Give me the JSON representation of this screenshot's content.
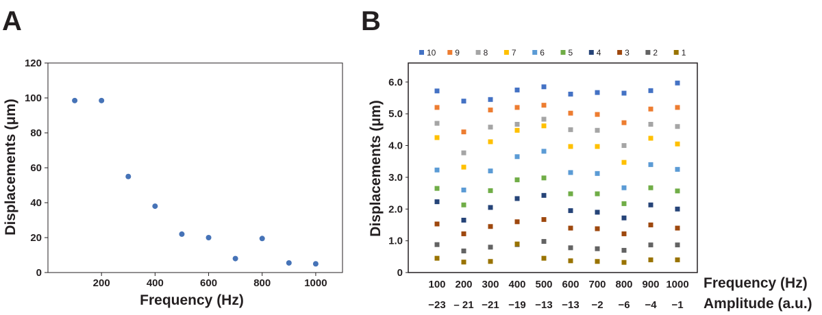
{
  "panels": {
    "a_label": "A",
    "b_label": "B"
  },
  "colors": {
    "axis": "#231f20",
    "series_a": "#4673b7",
    "series": [
      "#4472c4",
      "#ed7d31",
      "#a5a5a5",
      "#ffc000",
      "#5b9bd5",
      "#70ad47",
      "#264478",
      "#9e480e",
      "#636363",
      "#997300"
    ]
  },
  "chart_data": [
    {
      "panel": "A",
      "type": "scatter",
      "title": "",
      "xlabel": "Frequency (Hz)",
      "ylabel": "Displacements (μm)",
      "xlim": [
        0,
        1100
      ],
      "ylim": [
        0,
        120
      ],
      "xticks": [
        200,
        400,
        600,
        800,
        1000
      ],
      "yticks": [
        0,
        20,
        40,
        60,
        80,
        100,
        120
      ],
      "x": [
        100,
        200,
        300,
        400,
        500,
        600,
        700,
        800,
        900,
        1000
      ],
      "y": [
        98.5,
        98.5,
        55,
        38,
        22,
        20,
        8,
        19.5,
        5.5,
        5
      ],
      "grid": false
    },
    {
      "panel": "B",
      "type": "scatter",
      "title": "",
      "xlabel": "Frequency (Hz)",
      "xlabel2": "Amplitude (a.u.)",
      "ylabel": "Displacements (μm)",
      "ylim": [
        0,
        6.6
      ],
      "yticks": [
        "0",
        "1.0",
        "2.0",
        "3.0",
        "4.0",
        "5.0",
        "6.0"
      ],
      "categories": [
        "100",
        "200",
        "300",
        "400",
        "500",
        "600",
        "700",
        "800",
        "900",
        "1000"
      ],
      "categories2": [
        "−23",
        "– 21",
        "−21",
        "−19",
        "−13",
        "−13",
        "−2",
        "−6",
        "−4",
        "−1"
      ],
      "legend_position": "top",
      "grid": false,
      "series": [
        {
          "name": "10",
          "values": [
            5.72,
            5.4,
            5.45,
            5.75,
            5.85,
            5.62,
            5.67,
            5.65,
            5.73,
            5.97
          ]
        },
        {
          "name": "9",
          "values": [
            5.2,
            4.43,
            5.12,
            5.2,
            5.27,
            5.02,
            4.98,
            4.72,
            5.15,
            5.2
          ]
        },
        {
          "name": "8",
          "values": [
            4.7,
            3.77,
            4.58,
            4.67,
            4.83,
            4.5,
            4.48,
            4.0,
            4.67,
            4.6
          ]
        },
        {
          "name": "7",
          "values": [
            4.25,
            3.32,
            4.12,
            4.48,
            4.62,
            3.97,
            3.97,
            3.47,
            4.23,
            4.05
          ]
        },
        {
          "name": "6",
          "values": [
            3.23,
            2.6,
            3.2,
            3.65,
            3.82,
            3.15,
            3.12,
            2.67,
            3.4,
            3.25
          ]
        },
        {
          "name": "5",
          "values": [
            2.65,
            2.13,
            2.58,
            2.92,
            2.98,
            2.48,
            2.48,
            2.17,
            2.67,
            2.57
          ]
        },
        {
          "name": "4",
          "values": [
            2.23,
            1.65,
            2.05,
            2.33,
            2.43,
            1.95,
            1.9,
            1.72,
            2.13,
            2.0
          ]
        },
        {
          "name": "3",
          "values": [
            1.53,
            1.22,
            1.45,
            1.6,
            1.67,
            1.4,
            1.38,
            1.22,
            1.5,
            1.4
          ]
        },
        {
          "name": "2",
          "values": [
            0.88,
            0.68,
            0.8,
            0.88,
            0.98,
            0.78,
            0.75,
            0.7,
            0.87,
            0.87
          ]
        },
        {
          "name": "1",
          "values": [
            0.45,
            0.33,
            0.35,
            0.9,
            0.45,
            0.37,
            0.35,
            0.32,
            0.4,
            0.4
          ]
        }
      ]
    }
  ]
}
